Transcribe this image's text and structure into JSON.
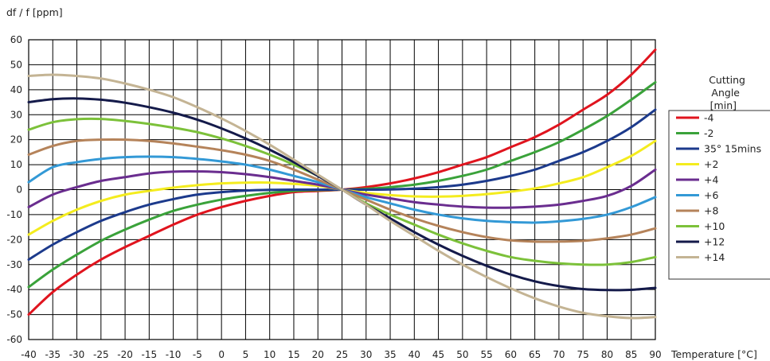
{
  "chart_data": {
    "type": "line",
    "ylabel": "df / f [ppm]",
    "xlabel": "Temperature [°C]",
    "legend_title": [
      "Cutting",
      "Angle",
      "[min]"
    ],
    "legend_position": "right",
    "grid": true,
    "xlim": [
      -40,
      90
    ],
    "ylim": [
      -60,
      60
    ],
    "x_ticks": [
      -40,
      -35,
      -30,
      -25,
      -20,
      -15,
      -10,
      -5,
      0,
      5,
      10,
      15,
      20,
      25,
      30,
      35,
      40,
      45,
      50,
      55,
      60,
      65,
      70,
      75,
      80,
      85,
      90
    ],
    "y_ticks": [
      60,
      50,
      40,
      30,
      20,
      10,
      0,
      -10,
      -20,
      -30,
      -40,
      -50,
      -60
    ],
    "x": [
      -40,
      -35,
      -30,
      -25,
      -20,
      -15,
      -10,
      -5,
      0,
      5,
      10,
      15,
      20,
      25,
      30,
      35,
      40,
      45,
      50,
      55,
      60,
      65,
      70,
      75,
      80,
      85,
      90
    ],
    "series": [
      {
        "name": "-4",
        "color": "#e0141e",
        "values": [
          -50,
          -41,
          -34,
          -28,
          -23,
          -18.5,
          -14,
          -10,
          -7,
          -4.5,
          -2.5,
          -1,
          -0.5,
          0,
          1,
          2.5,
          4.5,
          7,
          10,
          13,
          17,
          21,
          26,
          32,
          38,
          46,
          56
        ]
      },
      {
        "name": "-2",
        "color": "#3aa23a",
        "values": [
          -39,
          -32,
          -26,
          -20.5,
          -16,
          -12,
          -8.5,
          -6,
          -4,
          -2.5,
          -1.3,
          -0.5,
          -0.2,
          0,
          0.3,
          1,
          2,
          3.5,
          5.5,
          8,
          11.5,
          15,
          19,
          24,
          29.5,
          36,
          43
        ]
      },
      {
        "name": "35° 15mins",
        "color": "#1c3a8c",
        "values": [
          -28,
          -22,
          -17,
          -12.5,
          -9,
          -6,
          -3.8,
          -2,
          -1,
          -0.4,
          -0.1,
          0,
          0,
          0,
          0,
          0.1,
          0.4,
          1,
          2,
          3.5,
          5.5,
          8,
          11.5,
          15,
          19.5,
          25,
          32
        ]
      },
      {
        "name": "+2",
        "color": "#f4ec1e",
        "values": [
          -18,
          -12.5,
          -8,
          -4.5,
          -2,
          -0.5,
          0.8,
          1.8,
          2.5,
          2.8,
          2.8,
          2.3,
          1.5,
          0,
          -1.3,
          -2.2,
          -2.7,
          -2.8,
          -2.5,
          -1.8,
          -0.8,
          0.5,
          2.5,
          5,
          9,
          13.5,
          19.5
        ]
      },
      {
        "name": "+4",
        "color": "#6a2d8f",
        "values": [
          -7,
          -2,
          1,
          3.5,
          5,
          6.5,
          7.2,
          7.3,
          7,
          6.2,
          5,
          3.5,
          2,
          0,
          -2,
          -3.5,
          -5,
          -6,
          -6.8,
          -7.2,
          -7.2,
          -6.8,
          -6,
          -4.5,
          -2.5,
          1.5,
          8
        ]
      },
      {
        "name": "+6",
        "color": "#3399d6",
        "values": [
          3,
          9,
          11,
          12.3,
          13,
          13.2,
          13,
          12.3,
          11.3,
          10,
          8,
          5.5,
          3,
          0,
          -3,
          -5.5,
          -8,
          -10,
          -11.5,
          -12.5,
          -13,
          -13.2,
          -12.7,
          -11.7,
          -10,
          -7,
          -3
        ]
      },
      {
        "name": "+8",
        "color": "#b5835a",
        "values": [
          14,
          17.5,
          19.5,
          20,
          20,
          19.5,
          18.5,
          17.2,
          15.8,
          14,
          11.5,
          8,
          4,
          0,
          -4,
          -8,
          -11.5,
          -14.5,
          -17,
          -19,
          -20.3,
          -20.8,
          -20.8,
          -20.5,
          -19.5,
          -18,
          -15.5
        ]
      },
      {
        "name": "+10",
        "color": "#7cc13a",
        "values": [
          24,
          27,
          28.2,
          28.3,
          27.5,
          26.3,
          24.8,
          23,
          20.5,
          17.5,
          14,
          10,
          5.5,
          0,
          -5.5,
          -10,
          -14,
          -18,
          -21.5,
          -24.5,
          -27,
          -28.5,
          -29.5,
          -30,
          -30,
          -29,
          -27
        ]
      },
      {
        "name": "+12",
        "color": "#141a4a",
        "values": [
          35,
          36.2,
          36.5,
          36,
          34.8,
          33,
          30.8,
          28,
          24.5,
          20.5,
          16,
          11,
          5.5,
          0,
          -6,
          -11.5,
          -17,
          -22,
          -26.5,
          -30.5,
          -34,
          -36.7,
          -38.6,
          -39.8,
          -40.2,
          -40.1,
          -39.3
        ]
      },
      {
        "name": "+14",
        "color": "#c4b494",
        "values": [
          45.5,
          46,
          45.5,
          44.5,
          42.5,
          40,
          37,
          33,
          28.5,
          23.5,
          18,
          12,
          6,
          0,
          -6,
          -12.5,
          -18.5,
          -24.5,
          -30,
          -35,
          -39.5,
          -43.5,
          -46.8,
          -49.3,
          -50.7,
          -51.4,
          -51
        ]
      }
    ]
  }
}
